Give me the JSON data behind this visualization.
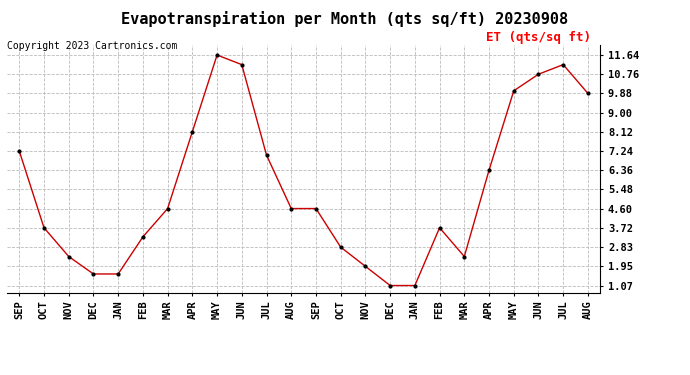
{
  "title": "Evapotranspiration per Month (qts sq/ft) 20230908",
  "copyright": "Copyright 2023 Cartronics.com",
  "legend_label": "ET (qts/sq ft)",
  "months": [
    "SEP",
    "OCT",
    "NOV",
    "DEC",
    "JAN",
    "FEB",
    "MAR",
    "APR",
    "MAY",
    "JUN",
    "JUL",
    "AUG",
    "SEP",
    "OCT",
    "NOV",
    "DEC",
    "JAN",
    "FEB",
    "MAR",
    "APR",
    "MAY",
    "JUN",
    "JUL",
    "AUG"
  ],
  "values": [
    7.24,
    3.72,
    2.4,
    1.6,
    1.6,
    3.3,
    4.6,
    8.12,
    11.64,
    11.2,
    7.05,
    4.6,
    4.6,
    2.83,
    1.95,
    1.07,
    1.07,
    3.72,
    2.4,
    6.36,
    10.0,
    10.76,
    11.2,
    9.88
  ],
  "line_color": "#cc0000",
  "marker": ".",
  "marker_color": "#000000",
  "background_color": "#ffffff",
  "grid_color": "#bbbbbb",
  "ytick_values": [
    1.07,
    1.95,
    2.83,
    3.72,
    4.6,
    5.48,
    6.36,
    7.24,
    8.12,
    9.0,
    9.88,
    10.76,
    11.64
  ],
  "ytick_labels": [
    "1.07",
    "1.95",
    "2.83",
    "3.72",
    "4.60",
    "5.48",
    "6.36",
    "7.24",
    "8.12",
    "9.00",
    "9.88",
    "10.76",
    "11.64"
  ],
  "ylim": [
    0.75,
    12.1
  ],
  "title_fontsize": 11,
  "copyright_fontsize": 7,
  "legend_fontsize": 9,
  "tick_fontsize": 7.5
}
